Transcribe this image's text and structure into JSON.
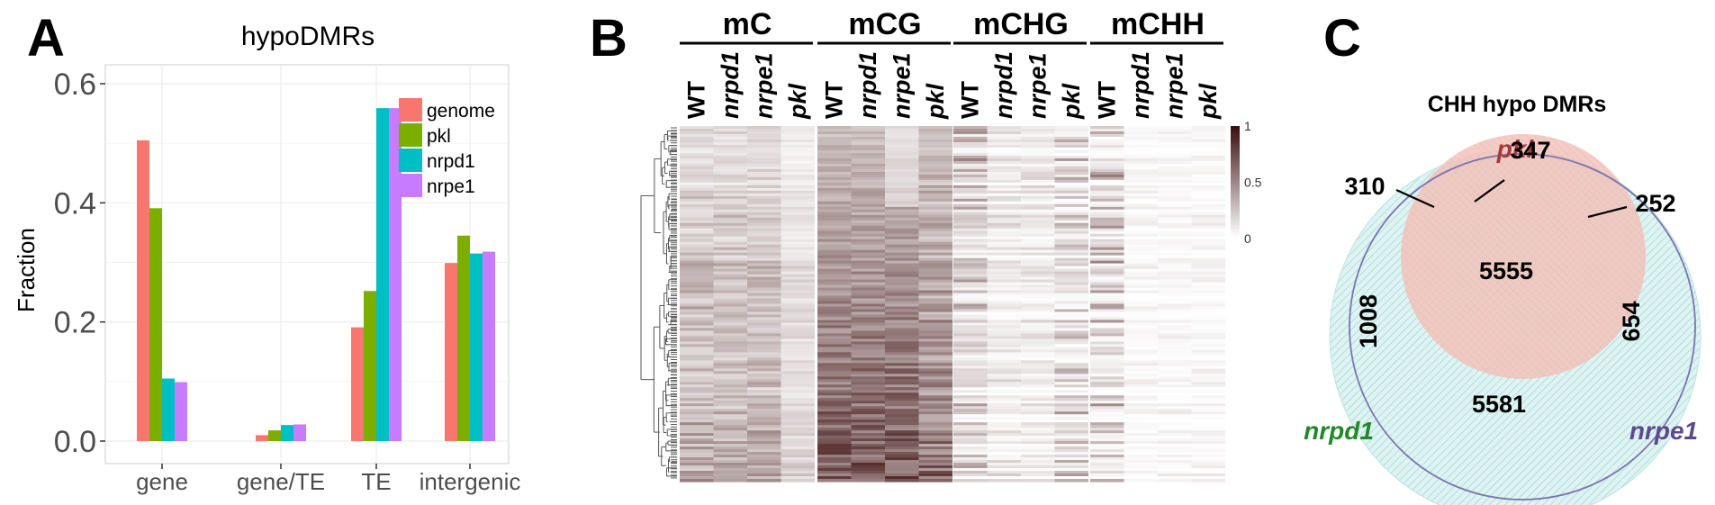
{
  "panels": {
    "A": {
      "letter": "A"
    },
    "B": {
      "letter": "B"
    },
    "C": {
      "letter": "C"
    }
  },
  "chart_data": [
    {
      "type": "bar",
      "panel": "A",
      "title": "hypoDMRs",
      "ylabel": "Fraction",
      "xlabel": "",
      "categories": [
        "gene",
        "gene/TE",
        "TE",
        "intergenic"
      ],
      "ylim": [
        0,
        0.63
      ],
      "yticks": [
        0.0,
        0.2,
        0.4,
        0.6
      ],
      "ytick_labels": [
        "0.0",
        "0.2",
        "0.4",
        "0.6"
      ],
      "grid": true,
      "legend_position": "top-right",
      "series": [
        {
          "name": "genome",
          "color": "#F8766D",
          "values": [
            0.505,
            0.01,
            0.191,
            0.299
          ]
        },
        {
          "name": "pkl",
          "color": "#7CAE00",
          "values": [
            0.391,
            0.018,
            0.252,
            0.345
          ]
        },
        {
          "name": "nrpd1",
          "color": "#00BFC4",
          "values": [
            0.105,
            0.027,
            0.559,
            0.315
          ]
        },
        {
          "name": "nrpe1",
          "color": "#C77CFF",
          "values": [
            0.099,
            0.028,
            0.559,
            0.318
          ]
        }
      ]
    },
    {
      "type": "heatmap",
      "panel": "B",
      "groups": [
        {
          "name": "mC",
          "columns": [
            "WT",
            "nrpd1",
            "nrpe1",
            "pkl"
          ]
        },
        {
          "name": "mCG",
          "columns": [
            "WT",
            "nrpd1",
            "nrpe1",
            "pkl"
          ]
        },
        {
          "name": "mCHG",
          "columns": [
            "WT",
            "nrpd1",
            "nrpe1",
            "pkl"
          ]
        },
        {
          "name": "mCHH",
          "columns": [
            "WT",
            "nrpd1",
            "nrpe1",
            "pkl"
          ]
        }
      ],
      "color_scale": {
        "min": 0,
        "mid": 0.5,
        "max": 1,
        "low_color": "#ffffff",
        "high_color": "#3d0f0f",
        "labels": [
          "1",
          "0.5",
          "0"
        ]
      },
      "row_dendrogram": true
    },
    {
      "type": "venn",
      "panel": "C",
      "title": "CHH hypo DMRs",
      "sets": [
        {
          "name": "pkl",
          "color": "#a83a3a"
        },
        {
          "name": "nrpd1",
          "color": "#22892b"
        },
        {
          "name": "nrpe1",
          "color": "#5b4a8c"
        }
      ],
      "regions": [
        {
          "sets": [
            "pkl"
          ],
          "value": "347"
        },
        {
          "sets": [
            "pkl",
            "nrpd1"
          ],
          "value": "310"
        },
        {
          "sets": [
            "pkl",
            "nrpe1"
          ],
          "value": "252"
        },
        {
          "sets": [
            "pkl",
            "nrpd1",
            "nrpe1"
          ],
          "value": "5555"
        },
        {
          "sets": [
            "nrpd1"
          ],
          "value": "1008"
        },
        {
          "sets": [
            "nrpe1"
          ],
          "value": "654"
        },
        {
          "sets": [
            "nrpd1",
            "nrpe1"
          ],
          "value": "5581"
        }
      ]
    }
  ]
}
